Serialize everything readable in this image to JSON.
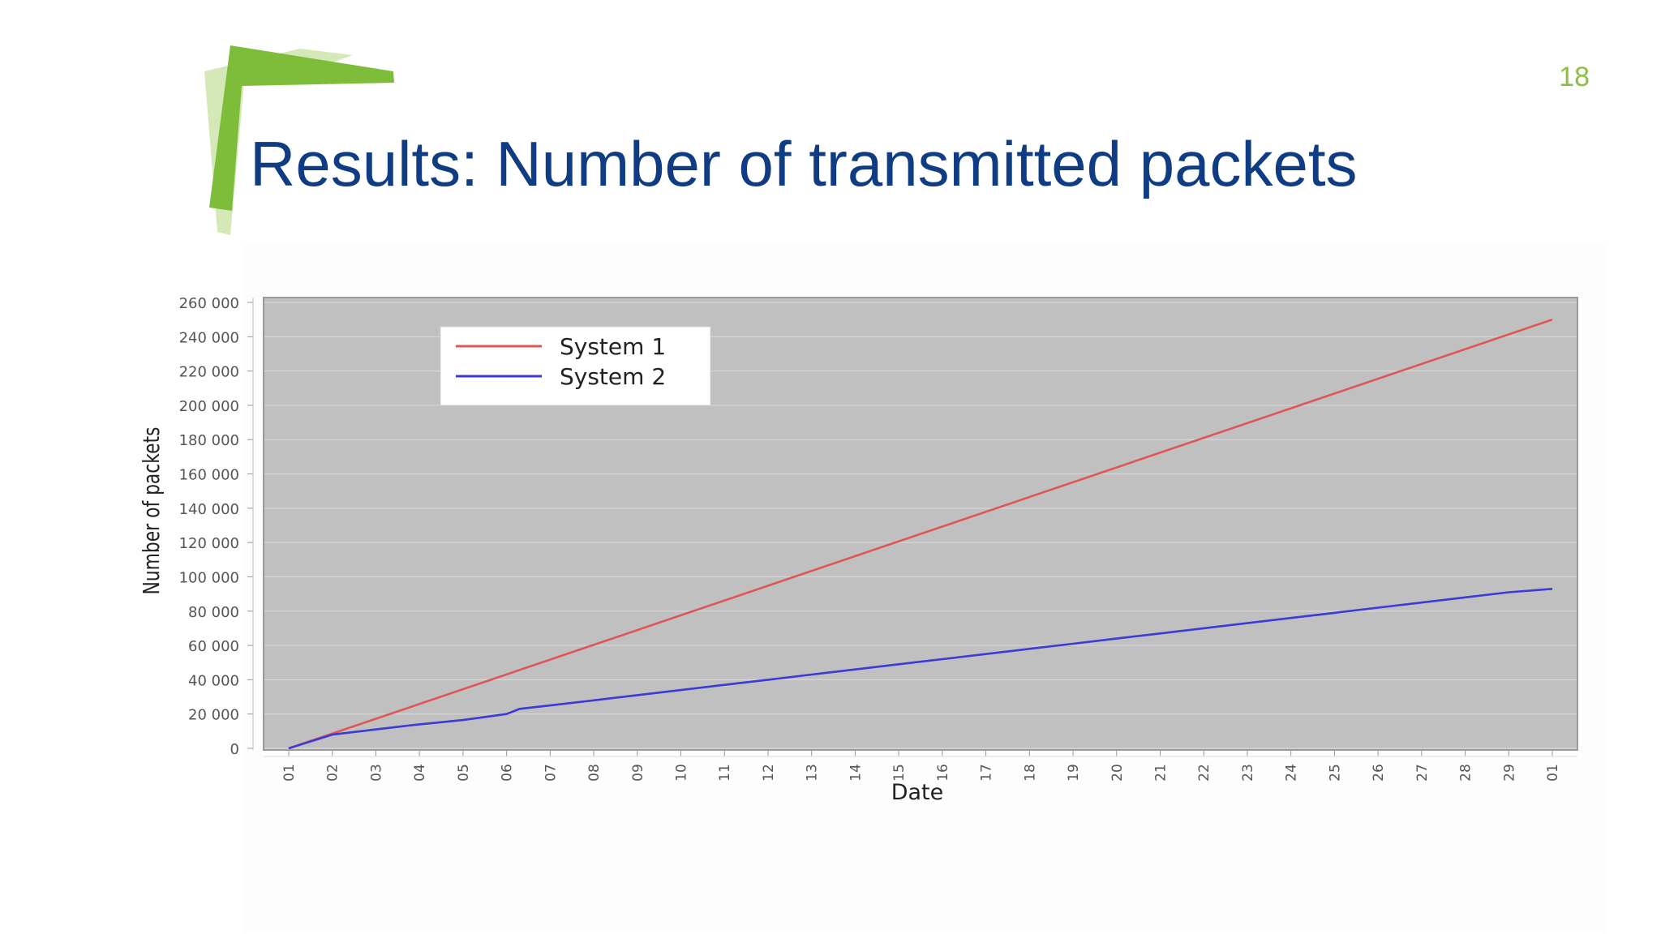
{
  "slide": {
    "page_number": "18",
    "title": "Results: Number of transmitted packets"
  },
  "colors": {
    "title": "#0f3c82",
    "page_number": "#8cbf3f",
    "logo_green": "#7dbd3a",
    "logo_light": "#c9e2a6",
    "plot_bg": "#c0c0c0",
    "gridline": "#d6d6d6",
    "system1": "#e05555",
    "system2": "#3b3bd6"
  },
  "chart_data": {
    "type": "line",
    "xlabel": "Date",
    "ylabel": "Number of packets",
    "x_tick_labels": [
      "01",
      "02",
      "03",
      "04",
      "05",
      "06",
      "07",
      "08",
      "09",
      "10",
      "11",
      "12",
      "13",
      "14",
      "15",
      "16",
      "17",
      "18",
      "19",
      "20",
      "21",
      "22",
      "23",
      "24",
      "25",
      "26",
      "27",
      "28",
      "29",
      "01"
    ],
    "ylim": [
      0,
      260000
    ],
    "y_ticks": [
      0,
      20000,
      40000,
      60000,
      80000,
      100000,
      120000,
      140000,
      160000,
      180000,
      200000,
      220000,
      240000,
      260000
    ],
    "y_tick_labels": [
      "0",
      "20 000",
      "40 000",
      "60 000",
      "80 000",
      "100 000",
      "120 000",
      "140 000",
      "160 000",
      "180 000",
      "200 000",
      "220 000",
      "240 000",
      "260 000"
    ],
    "grid": true,
    "legend_position": "top-left",
    "series": [
      {
        "name": "System 1",
        "color": "#e05555",
        "points": [
          [
            0,
            0
          ],
          [
            29,
            250000
          ]
        ]
      },
      {
        "name": "System 2",
        "color": "#3b3bd6",
        "points": [
          [
            0,
            0
          ],
          [
            1,
            8000
          ],
          [
            2,
            11000
          ],
          [
            3,
            14000
          ],
          [
            4,
            16500
          ],
          [
            5,
            20000
          ],
          [
            5.3,
            23000
          ],
          [
            6,
            25000
          ],
          [
            7,
            28000
          ],
          [
            8,
            31000
          ],
          [
            9,
            34000
          ],
          [
            10,
            37000
          ],
          [
            11,
            40000
          ],
          [
            12,
            43000
          ],
          [
            13,
            46000
          ],
          [
            14,
            49000
          ],
          [
            15,
            52000
          ],
          [
            16,
            55000
          ],
          [
            17,
            58000
          ],
          [
            18,
            61000
          ],
          [
            19,
            64000
          ],
          [
            20,
            67000
          ],
          [
            21,
            70000
          ],
          [
            22,
            73000
          ],
          [
            23,
            76000
          ],
          [
            24,
            79000
          ],
          [
            25,
            82000
          ],
          [
            26,
            85000
          ],
          [
            27,
            88000
          ],
          [
            28,
            91000
          ],
          [
            29,
            93000
          ]
        ]
      }
    ]
  }
}
